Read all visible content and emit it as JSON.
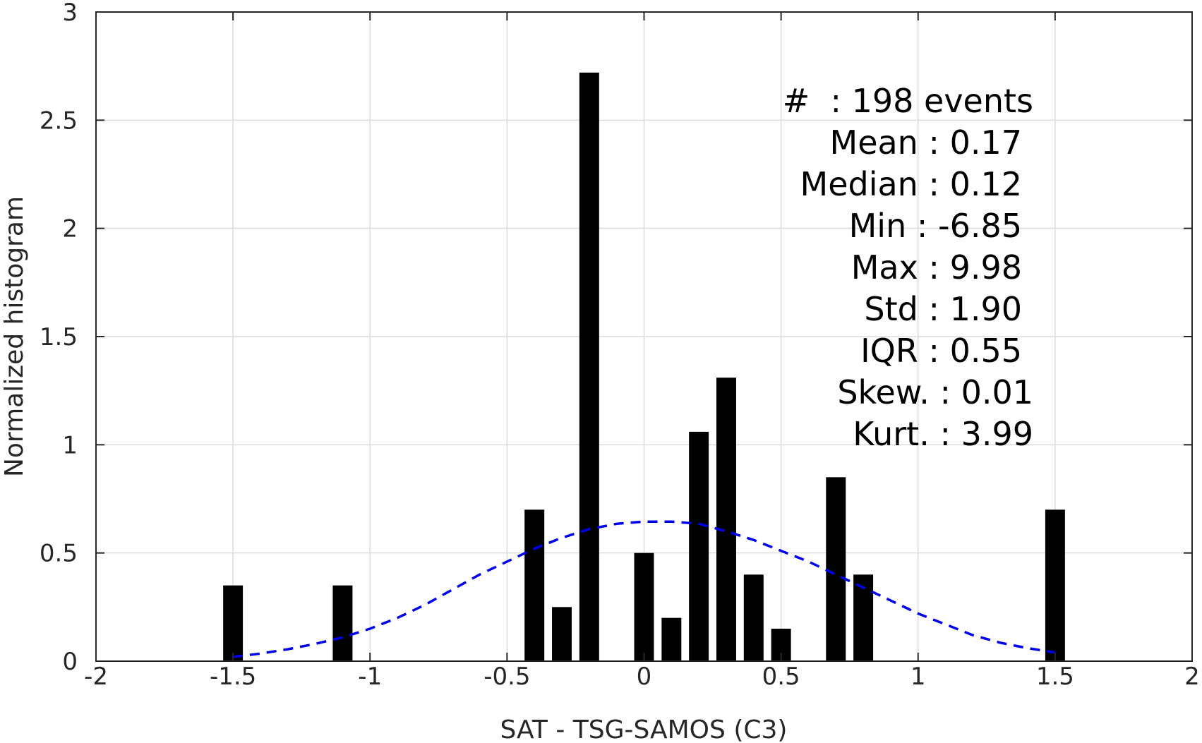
{
  "chart_data": {
    "type": "bar",
    "title": "",
    "xlabel": "SAT - TSG-SAMOS (C3)",
    "ylabel": "Normalized histogram",
    "xlim": [
      -2,
      2
    ],
    "ylim": [
      0,
      3
    ],
    "grid": true,
    "x_ticks": [
      "-2",
      "-1.5",
      "-1",
      "-0.5",
      "0",
      "0.5",
      "1",
      "1.5",
      "2"
    ],
    "y_ticks": [
      "0",
      "0.5",
      "1",
      "1.5",
      "2",
      "2.5",
      "3"
    ],
    "bin_width": 0.1,
    "bars": {
      "x": [
        -1.5,
        -1.1,
        -0.4,
        -0.3,
        -0.2,
        0.0,
        0.1,
        0.2,
        0.3,
        0.4,
        0.5,
        0.7,
        0.8,
        1.5
      ],
      "values": [
        0.35,
        0.35,
        0.7,
        0.25,
        2.72,
        0.5,
        0.2,
        1.06,
        1.31,
        0.4,
        0.15,
        0.85,
        0.4,
        0.7
      ],
      "color": "#000000"
    },
    "fit_curve": {
      "style": "dashed",
      "color": "#0000ee",
      "x": [
        -1.5,
        -1.4,
        -1.3,
        -1.2,
        -1.1,
        -1.0,
        -0.9,
        -0.8,
        -0.7,
        -0.6,
        -0.5,
        -0.4,
        -0.3,
        -0.2,
        -0.1,
        0.0,
        0.1,
        0.2,
        0.3,
        0.4,
        0.5,
        0.6,
        0.7,
        0.8,
        0.9,
        1.0,
        1.1,
        1.2,
        1.3,
        1.4,
        1.5
      ],
      "y": [
        0.02,
        0.035,
        0.055,
        0.08,
        0.11,
        0.15,
        0.2,
        0.26,
        0.33,
        0.4,
        0.46,
        0.52,
        0.57,
        0.61,
        0.635,
        0.645,
        0.645,
        0.635,
        0.6,
        0.56,
        0.51,
        0.46,
        0.4,
        0.34,
        0.28,
        0.22,
        0.17,
        0.12,
        0.085,
        0.06,
        0.04
      ]
    },
    "stats": {
      "count": "#  : 198 events",
      "mean": "Mean : 0.17",
      "median": "Median : 0.12",
      "min": "Min : -6.85",
      "max": "Max : 9.98",
      "std": "Std : 1.90",
      "iqr": "IQR : 0.55",
      "skew": "Skew. : 0.01",
      "kurt": "Kurt. : 3.99"
    }
  }
}
